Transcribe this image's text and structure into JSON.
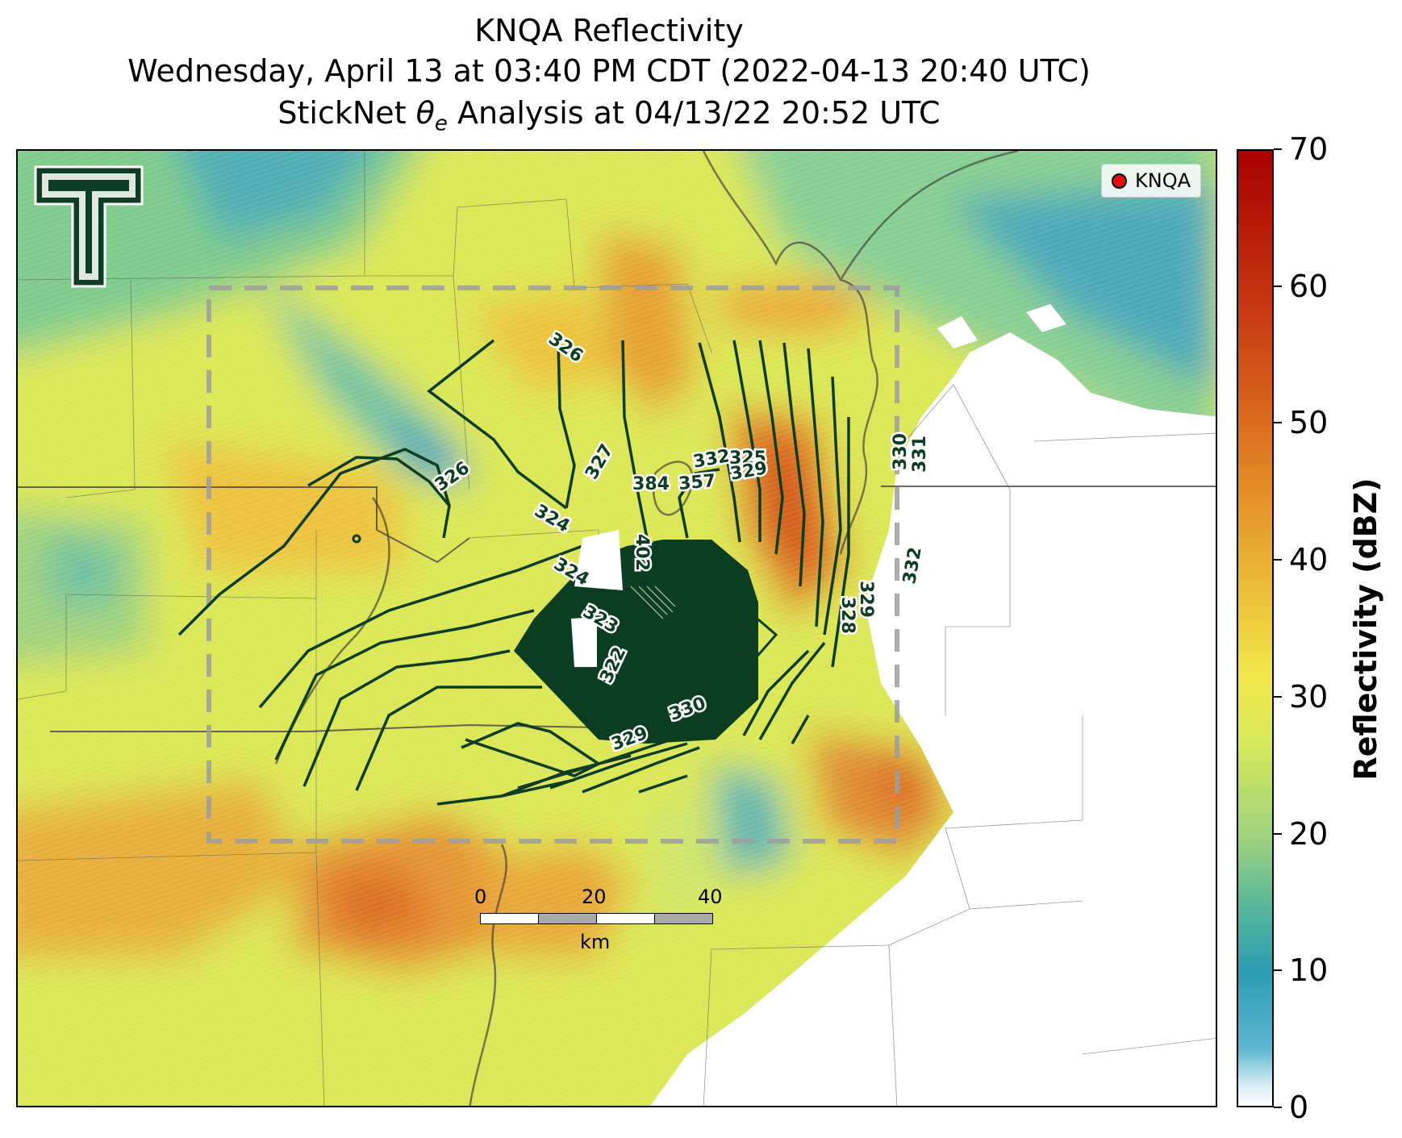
{
  "title": {
    "line1": "KNQA Reflectivity",
    "line2": "Wednesday, April 13 at 03:40 PM CDT (2022-04-13 20:40 UTC)",
    "line3_prefix": "StickNet ",
    "line3_symbol": "θ",
    "line3_sub": "e",
    "line3_suffix": " Analysis at 04/13/22 20:52 UTC"
  },
  "legend": {
    "label": "KNQA",
    "marker_color": "#e31010"
  },
  "scalebar": {
    "ticks": [
      "0",
      "20",
      "40"
    ],
    "unit": "km"
  },
  "colorbar": {
    "title": "Reflectivity (dBZ)",
    "ticks": [
      "0",
      "10",
      "20",
      "30",
      "40",
      "50",
      "60",
      "70"
    ],
    "range": [
      0,
      70
    ]
  },
  "contour_labels": [
    "326",
    "326",
    "324",
    "327",
    "384",
    "402",
    "324",
    "323",
    "322",
    "329",
    "330",
    "332",
    "325",
    "329",
    "357",
    "330",
    "331",
    "332",
    "329",
    "328"
  ],
  "colors": {
    "contour": "#0d3d22",
    "analysis_box": "#9e9e9e"
  },
  "icons": [
    "texas-tech-double-t-logo"
  ]
}
